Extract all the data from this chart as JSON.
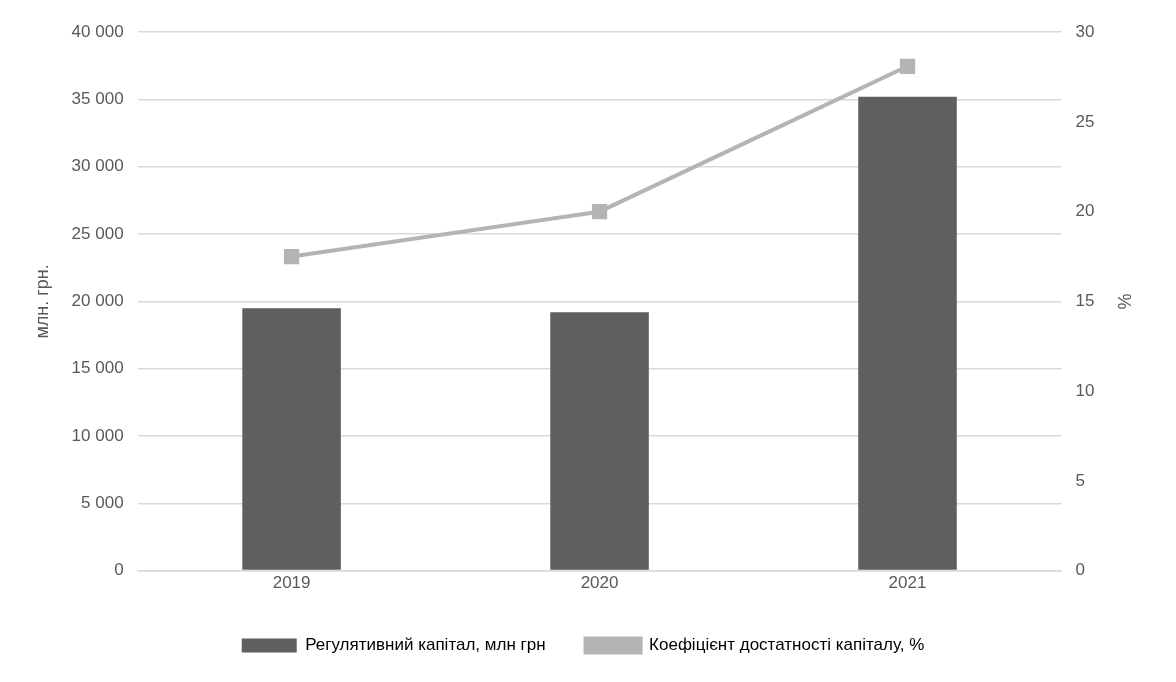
{
  "chart_data": {
    "type": "bar",
    "ylabel": "млн. грн.",
    "y2label": "%",
    "categories": [
      "2019",
      "2020",
      "2021"
    ],
    "series": [
      {
        "name": "Регулятивний капітал, млн грн",
        "color": "#5f5f5f",
        "values": [
          19500,
          19200,
          35200
        ]
      },
      {
        "name": "Коефіцієнт достатності капіталу, %",
        "type": "line",
        "axis": "y2",
        "color": "#b4b4b4",
        "marker": "square",
        "values": [
          17.5,
          20.0,
          28.1
        ]
      }
    ],
    "ylim": [
      0,
      40000
    ],
    "yticks": [
      {
        "value": 0,
        "label": "0"
      },
      {
        "value": 5000,
        "label": "5 000"
      },
      {
        "value": 10000,
        "label": "10 000"
      },
      {
        "value": 15000,
        "label": "15 000"
      },
      {
        "value": 20000,
        "label": "20 000"
      },
      {
        "value": 25000,
        "label": "25 000"
      },
      {
        "value": 30000,
        "label": "30 000"
      },
      {
        "value": 35000,
        "label": "35 000"
      },
      {
        "value": 40000,
        "label": "40 000"
      }
    ],
    "y2lim": [
      0,
      30
    ],
    "y2ticks": [
      0,
      5,
      10,
      15,
      20,
      25,
      30
    ],
    "grid": "y",
    "legend": "bottom"
  }
}
